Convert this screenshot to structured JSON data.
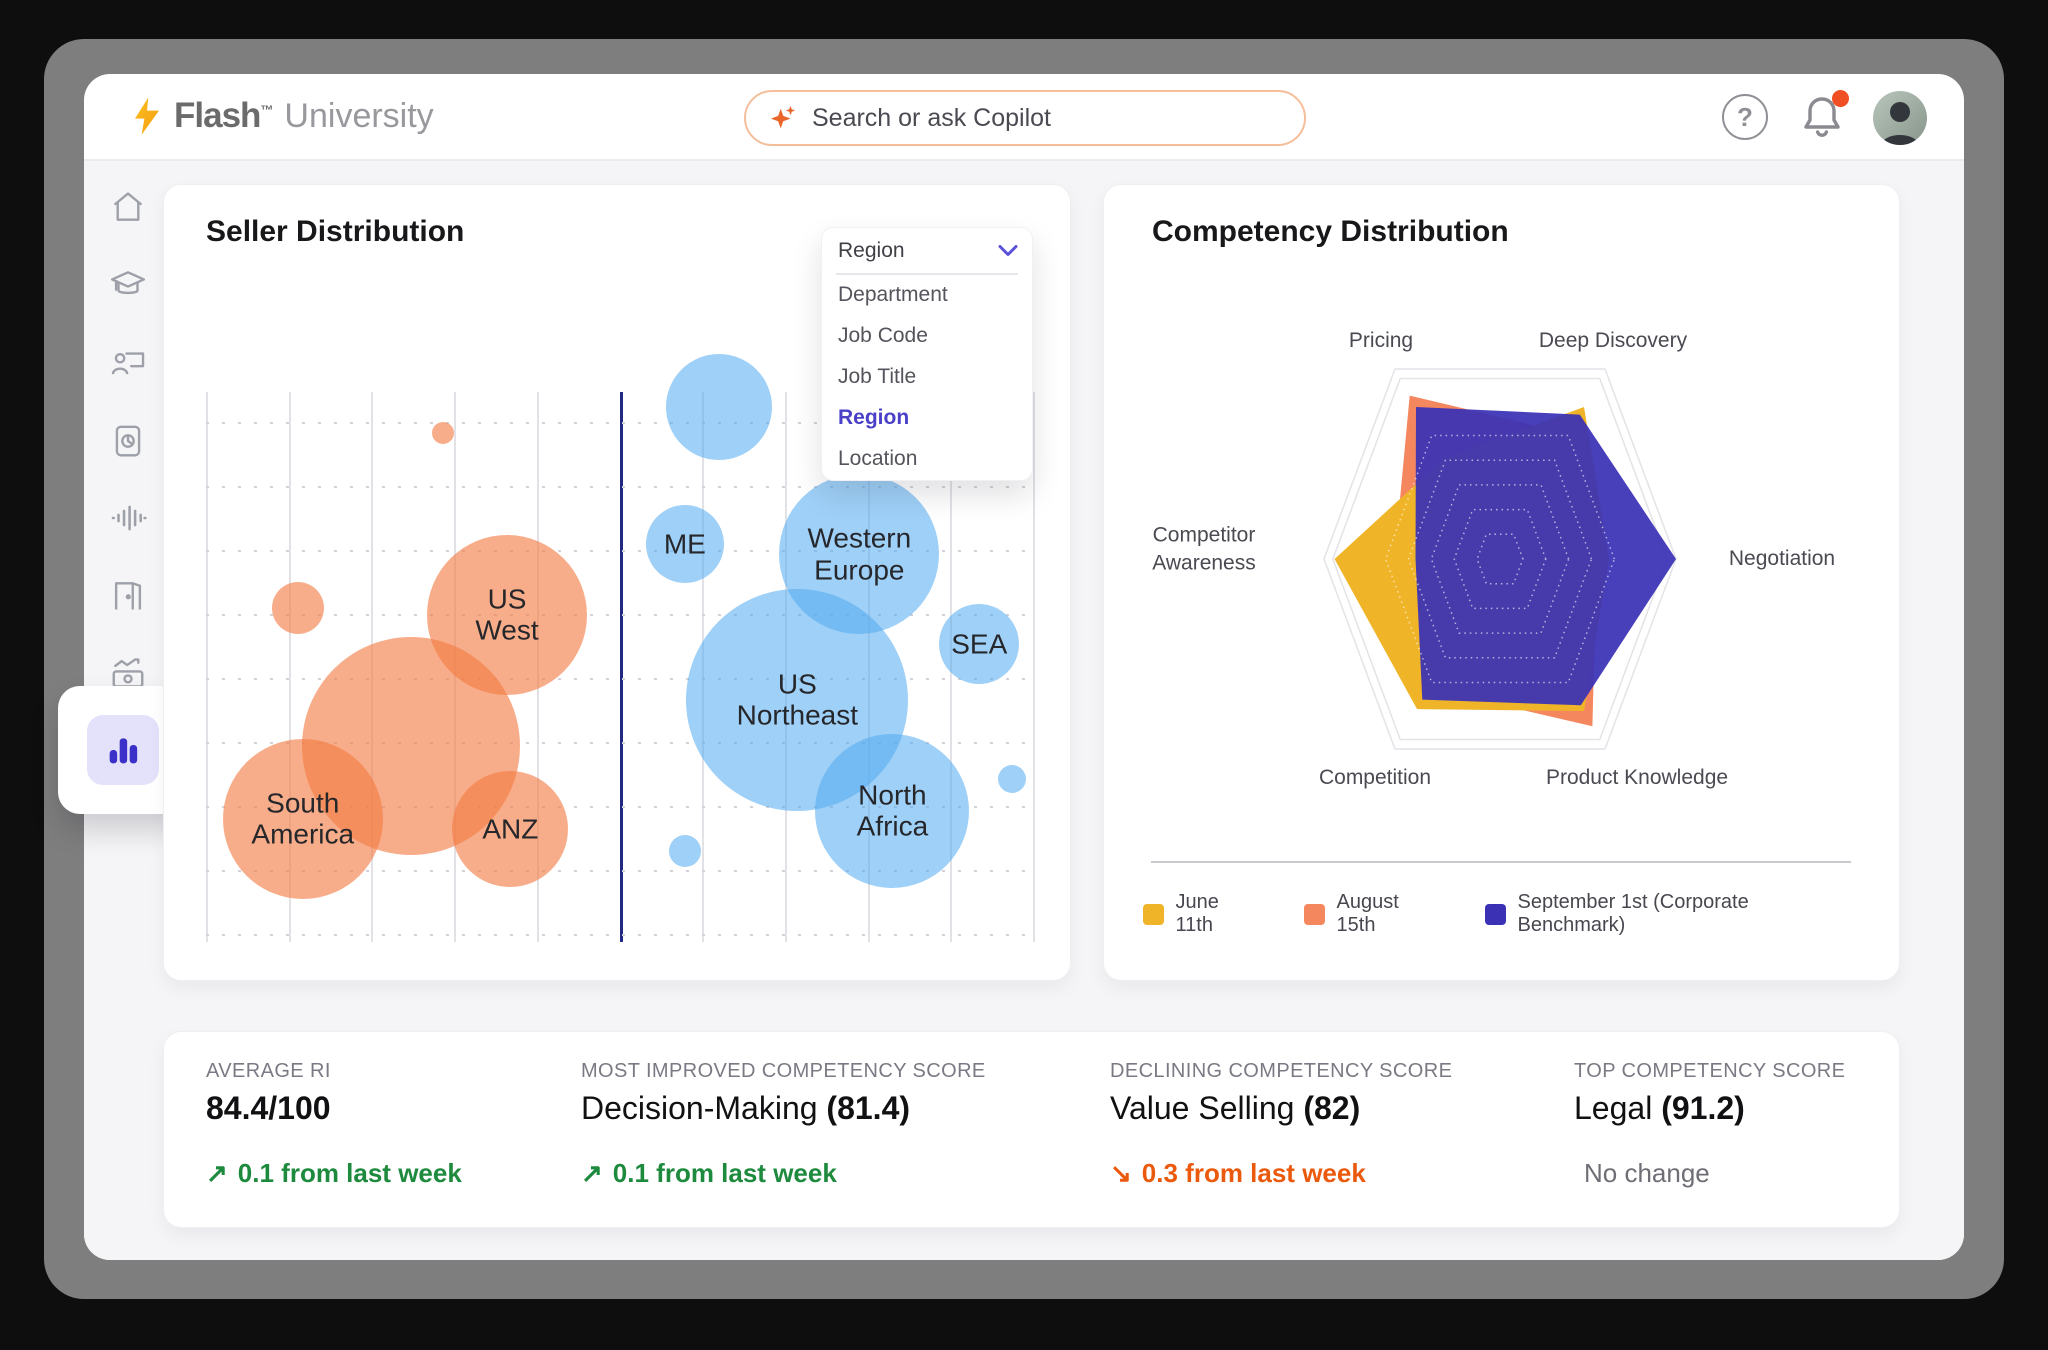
{
  "header": {
    "brand": {
      "name": "Flash",
      "tm": "™",
      "suffix": "University"
    },
    "search": {
      "placeholder": "Search or ask Copilot"
    },
    "actions": {
      "help_glyph": "?",
      "unread_notification": true
    }
  },
  "sidebar": {
    "items": [
      {
        "id": "home",
        "icon": "home-icon"
      },
      {
        "id": "learning",
        "icon": "graduation-cap-icon"
      },
      {
        "id": "coaching",
        "icon": "trainer-icon"
      },
      {
        "id": "reports",
        "icon": "report-doc-icon"
      },
      {
        "id": "voice",
        "icon": "waveform-icon"
      },
      {
        "id": "rooms",
        "icon": "door-icon"
      },
      {
        "id": "earnings",
        "icon": "money-chart-icon"
      }
    ],
    "active": {
      "id": "analytics",
      "icon": "bar-chart-icon"
    }
  },
  "seller_card": {
    "title": "Seller Distribution",
    "dropdown": {
      "selected": "Region",
      "options": [
        "Department",
        "Job Code",
        "Job Title",
        "Region",
        "Location"
      ],
      "active_option": "Region"
    }
  },
  "competency_card": {
    "title": "Competency Distribution"
  },
  "stats": [
    {
      "label": "AVERAGE RI",
      "value": "",
      "strong": "84.4/100",
      "arrow": "↗",
      "delta": "0.1 from last week",
      "direction": "up"
    },
    {
      "label": "MOST IMPROVED COMPETENCY SCORE",
      "value": "Decision-Making ",
      "strong": "(81.4)",
      "arrow": "↗",
      "delta": "0.1 from last week",
      "direction": "up"
    },
    {
      "label": "DECLINING COMPETENCY SCORE",
      "value": "Value Selling ",
      "strong": "(82)",
      "arrow": "↘",
      "delta": "0.3 from last week",
      "direction": "down"
    },
    {
      "label": "TOP COMPETENCY SCORE",
      "value": "Legal ",
      "strong": "(91.2)",
      "arrow": "",
      "delta": "No change",
      "direction": "none"
    }
  ],
  "chart_data": [
    {
      "type": "scatter",
      "title": "Seller Distribution",
      "grouping": "Region",
      "grid": {
        "v_lines": 11,
        "h_lines": 9,
        "divider_index": 5
      },
      "series": [
        {
          "name": "left-group",
          "color": "#F6824E",
          "fill": "rgba(244,122,66,0.62)",
          "bubbles": [
            {
              "label": "",
              "x": 28.7,
              "y": 7.5,
              "r": 11
            },
            {
              "label": "",
              "x": 11.1,
              "y": 39.3,
              "r": 26
            },
            {
              "label": "US West",
              "lines": [
                "US",
                "West"
              ],
              "x": 36.4,
              "y": 40.5,
              "r": 80
            },
            {
              "label": "",
              "x": 24.8,
              "y": 64.4,
              "r": 109
            },
            {
              "label": "South America",
              "lines": [
                "South",
                "America"
              ],
              "x": 11.7,
              "y": 77.6,
              "r": 80
            },
            {
              "label": "ANZ",
              "lines": [
                "ANZ"
              ],
              "x": 36.8,
              "y": 79.5,
              "r": 58
            }
          ]
        },
        {
          "name": "right-group",
          "color": "#64B9F1",
          "fill": "rgba(80,170,240,0.55)",
          "bubbles": [
            {
              "label": "",
              "x": 62.0,
              "y": 2.7,
              "r": 53
            },
            {
              "label": "ME",
              "lines": [
                "ME"
              ],
              "x": 57.9,
              "y": 27.6,
              "r": 39
            },
            {
              "label": "Western Europe",
              "lines": [
                "Western",
                "Europe"
              ],
              "x": 79.0,
              "y": 29.5,
              "r": 80
            },
            {
              "label": "SEA",
              "lines": [
                "SEA"
              ],
              "x": 93.5,
              "y": 45.8,
              "r": 40
            },
            {
              "label": "US Northeast",
              "lines": [
                "US",
                "Northeast"
              ],
              "x": 71.5,
              "y": 56.0,
              "r": 111
            },
            {
              "label": "North Africa",
              "lines": [
                "North",
                "Africa"
              ],
              "x": 83.0,
              "y": 76.2,
              "r": 77
            },
            {
              "label": "",
              "x": 97.5,
              "y": 70.4,
              "r": 14
            },
            {
              "label": "",
              "x": 57.9,
              "y": 83.5,
              "r": 16
            }
          ]
        }
      ]
    },
    {
      "type": "radar",
      "title": "Competency Distribution",
      "axes": [
        "Negotiation",
        "Deep Discovery",
        "Pricing",
        "Competitor Awareness",
        "Competition",
        "Product Knowledge"
      ],
      "max": 1,
      "rings": 5,
      "series": [
        {
          "name": "June 11th",
          "color": "#F0B429",
          "opacity": 1,
          "values": [
            0.62,
            0.8,
            0.53,
            0.94,
            0.79,
            0.8
          ]
        },
        {
          "name": "August 15th",
          "color": "#F5875F",
          "opacity": 1,
          "values": [
            0.55,
            0.66,
            0.86,
            0.6,
            0.68,
            0.88
          ]
        },
        {
          "name": "September 1st (Corporate Benchmark)",
          "color": "#3A31B5",
          "opacity": 0.93,
          "values": [
            1.0,
            0.76,
            0.8,
            0.48,
            0.74,
            0.77
          ]
        }
      ],
      "draw_order": [
        1,
        0,
        2
      ],
      "legend_position": "bottom"
    }
  ],
  "colors": {
    "accent_purple": "#4A41C8",
    "positive_green": "#1D8A3E",
    "negative_orange": "#EA590C",
    "search_border": "#F5BE9B",
    "bolt_yellow": "#F7A81B",
    "notification_dot": "#F04F23",
    "grid_divider": "#202A83"
  }
}
